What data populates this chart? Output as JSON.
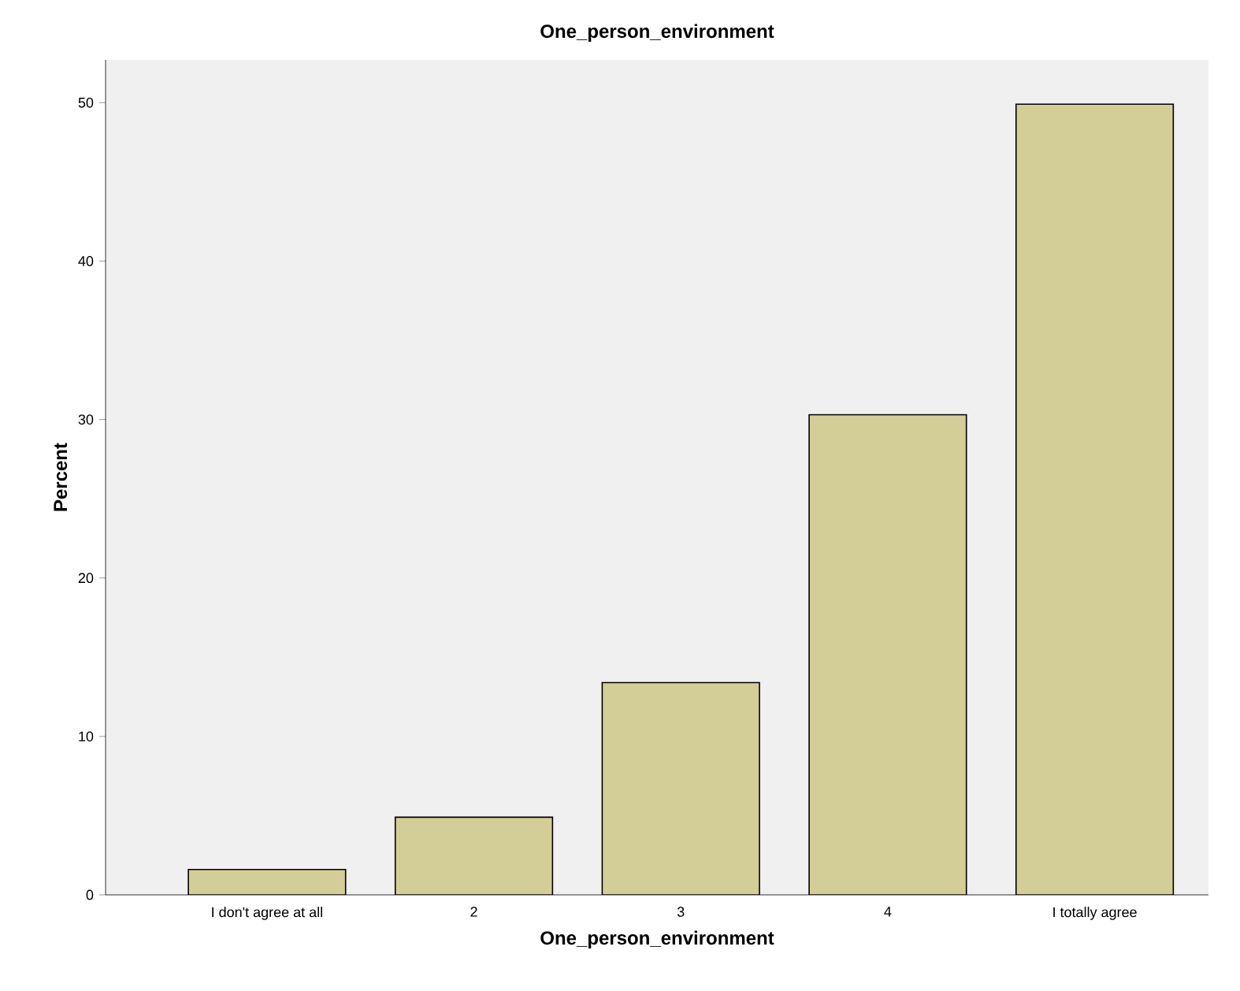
{
  "chart_data": {
    "type": "bar",
    "title": "One_person_environment",
    "xlabel": "One_person_environment",
    "ylabel": "Percent",
    "categories": [
      "I don't agree at all",
      "2",
      "3",
      "4",
      "I totally agree"
    ],
    "values": [
      1.6,
      4.9,
      13.4,
      30.3,
      49.9
    ],
    "color": "#d3ce97",
    "ylim": [
      0,
      52.7
    ],
    "yticks": [
      0,
      10,
      20,
      30,
      40,
      50
    ],
    "grid": false
  }
}
